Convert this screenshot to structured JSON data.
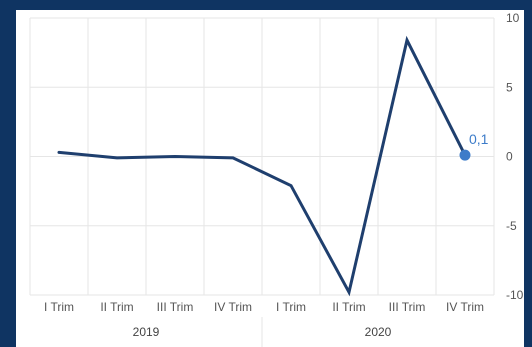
{
  "chart_data": {
    "type": "line",
    "title": "",
    "xlabel": "",
    "ylabel": "",
    "categories": [
      "I Trim",
      "II Trim",
      "III Trim",
      "IV Trim",
      "I Trim",
      "II Trim",
      "III Trim",
      "IV Trim"
    ],
    "groups": [
      {
        "label": "2019",
        "count": 4
      },
      {
        "label": "2020",
        "count": 4
      }
    ],
    "series": [
      {
        "values": [
          0.3,
          -0.1,
          0.0,
          -0.1,
          -2.1,
          -9.8,
          8.4,
          0.1
        ]
      }
    ],
    "ylim": [
      -10,
      10
    ],
    "yticks": [
      10,
      5,
      0,
      -5,
      -10
    ],
    "y_axis_position": "right",
    "grid": true,
    "highlight": {
      "index": 7,
      "label": "0,1"
    },
    "colors": {
      "line": "#1f3f6e",
      "marker": "#3d7cc9",
      "grid": "#e6e6e6",
      "background_outer": "#0f3462",
      "background_panel": "#ffffff"
    }
  }
}
